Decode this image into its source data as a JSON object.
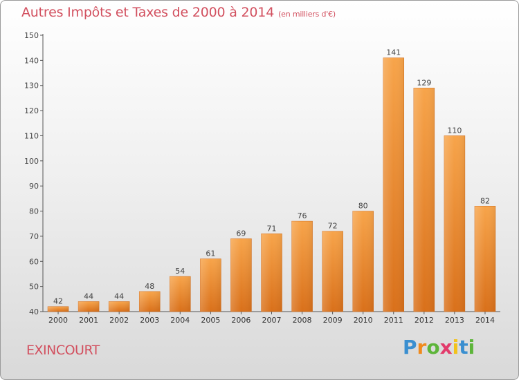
{
  "title": {
    "main": "Autres Impôts et Taxes de 2000 à 2014",
    "unit": "(en milliers d'€)"
  },
  "commune": "EXINCOURT",
  "brand": {
    "letters": [
      "P",
      "r",
      "o",
      "x",
      "i",
      "t",
      "i"
    ],
    "colors": [
      "#3a8fd0",
      "#f08a1c",
      "#5db53a",
      "#e23b6b",
      "#f2c21a",
      "#3a8fd0",
      "#5db53a"
    ]
  },
  "chart_data": {
    "type": "bar",
    "categories": [
      "2000",
      "2001",
      "2002",
      "2003",
      "2004",
      "2005",
      "2006",
      "2007",
      "2008",
      "2009",
      "2010",
      "2011",
      "2012",
      "2013",
      "2014"
    ],
    "values": [
      42,
      44,
      44,
      48,
      54,
      61,
      69,
      71,
      76,
      72,
      80,
      141,
      129,
      110,
      82
    ],
    "ylim": [
      40,
      150
    ],
    "yticks": [
      40,
      50,
      60,
      70,
      80,
      90,
      100,
      110,
      120,
      130,
      140,
      150
    ],
    "grid": false,
    "bar_color": "#f08a2a"
  }
}
